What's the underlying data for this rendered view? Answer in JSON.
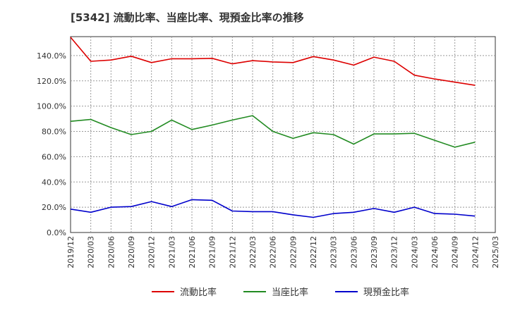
{
  "chart_data": {
    "type": "line",
    "title": "[5342]  流動比率、当座比率、現預金比率の推移",
    "xlabel": "",
    "ylabel": "",
    "ylim": [
      0,
      155
    ],
    "y_ticks": [
      "0.0%",
      "20.0%",
      "40.0%",
      "60.0%",
      "80.0%",
      "100.0%",
      "120.0%",
      "140.0%"
    ],
    "y_tick_values": [
      0,
      20,
      40,
      60,
      80,
      100,
      120,
      140
    ],
    "grid": true,
    "legend_position": "bottom",
    "categories": [
      "2019/12",
      "2020/03",
      "2020/06",
      "2020/09",
      "2020/12",
      "2021/03",
      "2021/06",
      "2021/09",
      "2021/12",
      "2022/03",
      "2022/06",
      "2022/09",
      "2022/12",
      "2023/03",
      "2023/06",
      "2023/09",
      "2023/12",
      "2024/03",
      "2024/06",
      "2024/09",
      "2024/12",
      "2025/03"
    ],
    "series": [
      {
        "name": "流動比率",
        "color": "#dd0000",
        "values": [
          154.5,
          135.5,
          136.5,
          139.5,
          134.5,
          137.5,
          137.5,
          137.8,
          133.5,
          136.0,
          135.0,
          134.5,
          139.2,
          136.5,
          132.5,
          138.8,
          135.5,
          124.5,
          121.5,
          119.0,
          116.5,
          null
        ]
      },
      {
        "name": "当座比率",
        "color": "#228b22",
        "values": [
          88.0,
          89.5,
          83.0,
          77.5,
          80.0,
          89.0,
          81.5,
          85.0,
          89.0,
          92.5,
          80.0,
          74.5,
          79.0,
          77.5,
          70.0,
          78.0,
          78.0,
          78.5,
          73.0,
          67.5,
          71.5,
          null
        ]
      },
      {
        "name": "現預金比率",
        "color": "#0000cc",
        "values": [
          18.5,
          16.0,
          20.0,
          20.5,
          24.5,
          20.5,
          26.0,
          25.5,
          17.0,
          16.5,
          16.5,
          14.0,
          12.0,
          15.0,
          16.0,
          19.0,
          16.0,
          20.0,
          15.0,
          14.5,
          13.0,
          null
        ]
      }
    ]
  }
}
